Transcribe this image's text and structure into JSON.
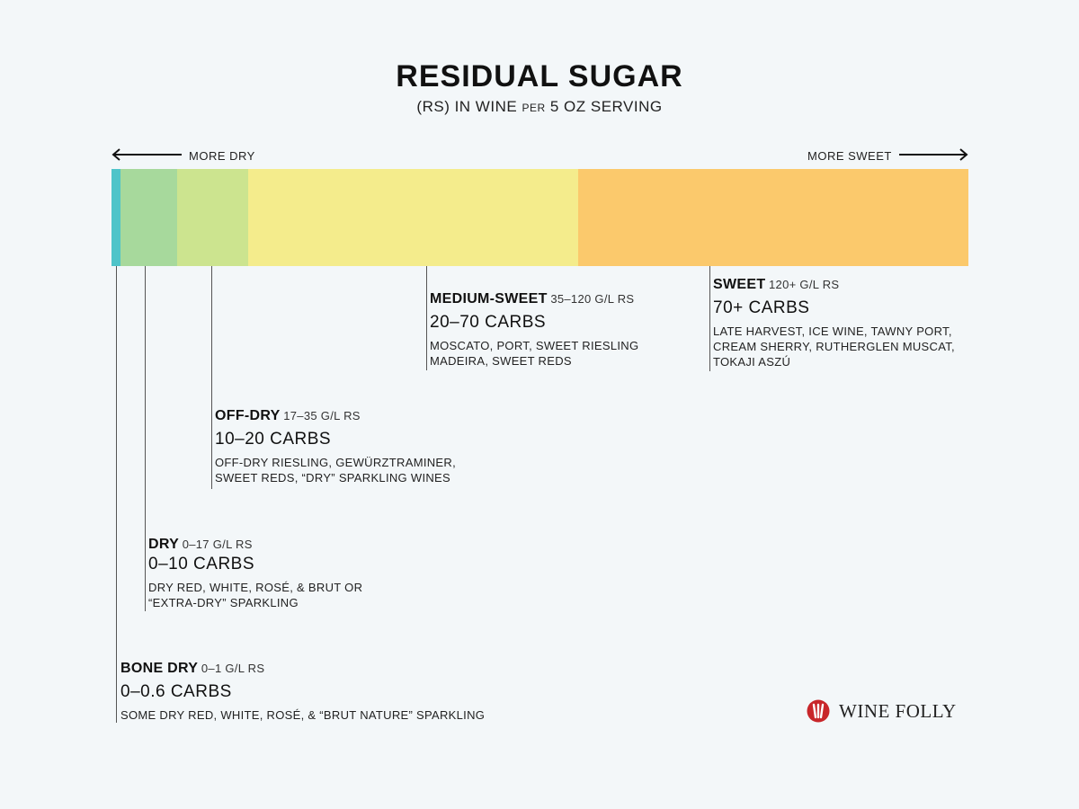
{
  "title": "RESIDUAL SUGAR",
  "subtitle": {
    "part1": "(RS) IN WINE",
    "part2": "PER",
    "part3": "5 OZ SERVING"
  },
  "direction": {
    "left": "MORE DRY",
    "right": "MORE SWEET"
  },
  "bar_segments": [
    {
      "color": "#4fc4c9",
      "portion": 0.011
    },
    {
      "color": "#a7d99c",
      "portion": 0.066
    },
    {
      "color": "#cce48f",
      "portion": 0.082
    },
    {
      "color": "#f4ec8c",
      "portion": 0.386
    },
    {
      "color": "#fbc96c",
      "portion": 0.455
    }
  ],
  "categories": [
    {
      "name": "MEDIUM-SWEET",
      "range": "35–120 G/L RS",
      "carbs": "20–70 CARBS",
      "wines": [
        "MOSCATO, PORT, SWEET RIESLING",
        "MADEIRA, SWEET REDS"
      ]
    },
    {
      "name": "SWEET",
      "range": "120+ G/L RS",
      "carbs": "70+ CARBS",
      "wines": [
        "LATE HARVEST, ICE WINE, TAWNY PORT,",
        "CREAM SHERRY, RUTHERGLEN MUSCAT,",
        "TOKAJI ASZÚ"
      ]
    },
    {
      "name": "OFF-DRY",
      "range": "17–35 G/L RS",
      "carbs": "10–20 CARBS",
      "wines": [
        "OFF-DRY RIESLING, GEWÜRZTRAMINER,",
        "SWEET REDS, “DRY” SPARKLING WINES"
      ]
    },
    {
      "name": "DRY",
      "range": "0–17 G/L RS",
      "carbs": "0–10 CARBS",
      "wines": [
        "DRY RED, WHITE, ROSÉ, & BRUT OR",
        "“EXTRA-DRY” SPARKLING"
      ]
    },
    {
      "name": "BONE DRY",
      "range": "0–1 G/L RS",
      "carbs": "0–0.6 CARBS",
      "wines": [
        "SOME DRY RED, WHITE, ROSÉ, & “BRUT NATURE” SPARKLING"
      ]
    }
  ],
  "logo": {
    "text": "WINE FOLLY",
    "icon": "wine-folly-logo-icon",
    "color": "#c8262a"
  }
}
